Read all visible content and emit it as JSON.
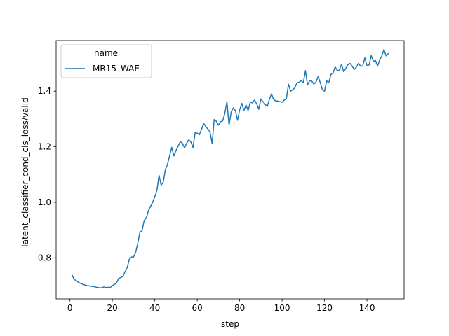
{
  "chart_data": {
    "type": "line",
    "xlabel": "step",
    "ylabel": "latent_classifier_cond_cls_loss/valid",
    "xlim": [
      -6.5,
      157.5
    ],
    "ylim": [
      0.652,
      1.582
    ],
    "xticks": [
      0,
      20,
      40,
      60,
      80,
      100,
      120,
      140
    ],
    "yticks": [
      0.8,
      1.0,
      1.2,
      1.4
    ],
    "ytick_labels": [
      "0.8",
      "1.0",
      "1.2",
      "1.4"
    ],
    "grid": false,
    "legend": {
      "placement": "top-left",
      "title": "name"
    },
    "series": [
      {
        "name": "MR15_WAE",
        "color": "#1f77b4",
        "x": [
          1,
          2,
          3,
          4,
          5,
          6,
          7,
          8,
          9,
          10,
          11,
          12,
          13,
          14,
          15,
          16,
          17,
          18,
          19,
          20,
          21,
          22,
          23,
          24,
          25,
          26,
          27,
          28,
          29,
          30,
          31,
          32,
          33,
          34,
          35,
          36,
          37,
          38,
          39,
          40,
          41,
          42,
          43,
          44,
          45,
          46,
          47,
          48,
          49,
          50,
          51,
          52,
          53,
          54,
          55,
          56,
          57,
          58,
          59,
          60,
          61,
          62,
          63,
          64,
          65,
          66,
          67,
          68,
          69,
          70,
          71,
          72,
          73,
          74,
          75,
          76,
          77,
          78,
          79,
          80,
          81,
          82,
          83,
          84,
          85,
          86,
          87,
          88,
          89,
          90,
          91,
          92,
          93,
          94,
          95,
          96,
          97,
          98,
          99,
          100,
          101,
          102,
          103,
          104,
          105,
          106,
          107,
          108,
          109,
          110,
          111,
          112,
          113,
          114,
          115,
          116,
          117,
          118,
          119,
          120,
          121,
          122,
          123,
          124,
          125,
          126,
          127,
          128,
          129,
          130,
          131,
          132,
          133,
          134,
          135,
          136,
          137,
          138,
          139,
          140,
          141,
          142,
          143,
          144,
          145,
          146,
          147,
          148,
          149,
          150
        ],
        "values": [
          0.738,
          0.722,
          0.718,
          0.712,
          0.708,
          0.705,
          0.702,
          0.7,
          0.699,
          0.697,
          0.697,
          0.695,
          0.693,
          0.692,
          0.692,
          0.695,
          0.693,
          0.694,
          0.693,
          0.7,
          0.704,
          0.71,
          0.726,
          0.729,
          0.733,
          0.75,
          0.765,
          0.795,
          0.803,
          0.803,
          0.82,
          0.852,
          0.893,
          0.897,
          0.935,
          0.943,
          0.97,
          0.985,
          1.0,
          1.02,
          1.043,
          1.097,
          1.062,
          1.073,
          1.118,
          1.137,
          1.168,
          1.198,
          1.167,
          1.186,
          1.202,
          1.218,
          1.213,
          1.196,
          1.212,
          1.225,
          1.218,
          1.197,
          1.25,
          1.249,
          1.243,
          1.262,
          1.285,
          1.272,
          1.264,
          1.254,
          1.212,
          1.298,
          1.292,
          1.278,
          1.29,
          1.293,
          1.32,
          1.362,
          1.278,
          1.325,
          1.34,
          1.33,
          1.295,
          1.333,
          1.356,
          1.33,
          1.35,
          1.33,
          1.36,
          1.358,
          1.368,
          1.355,
          1.335,
          1.372,
          1.362,
          1.353,
          1.345,
          1.37,
          1.39,
          1.37,
          1.365,
          1.364,
          1.362,
          1.36,
          1.368,
          1.372,
          1.425,
          1.4,
          1.405,
          1.412,
          1.43,
          1.432,
          1.438,
          1.43,
          1.474,
          1.422,
          1.438,
          1.436,
          1.425,
          1.433,
          1.453,
          1.43,
          1.405,
          1.4,
          1.437,
          1.43,
          1.46,
          1.465,
          1.487,
          1.474,
          1.476,
          1.497,
          1.47,
          1.482,
          1.495,
          1.5,
          1.49,
          1.478,
          1.487,
          1.5,
          1.49,
          1.49,
          1.52,
          1.492,
          1.494,
          1.528,
          1.508,
          1.51,
          1.49,
          1.512,
          1.527,
          1.55,
          1.527,
          1.535
        ]
      }
    ]
  }
}
